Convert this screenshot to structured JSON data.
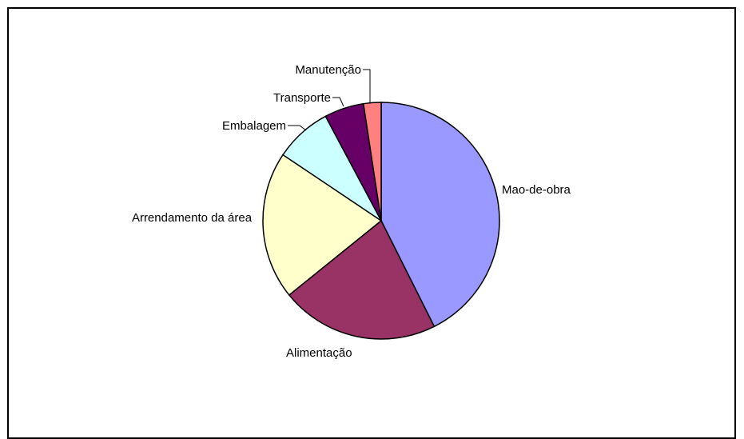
{
  "chart_data": {
    "type": "pie",
    "categories": [
      "Mao-de-obra",
      "Alimentação",
      "Arrendamento da área",
      "Embalagem",
      "Transporte",
      "Manutenção"
    ],
    "values": [
      42.6,
      21.6,
      20.2,
      7.8,
      5.4,
      2.4
    ],
    "colors": [
      "#9999ff",
      "#993366",
      "#ffffcc",
      "#ccffff",
      "#660066",
      "#ff8080"
    ]
  }
}
